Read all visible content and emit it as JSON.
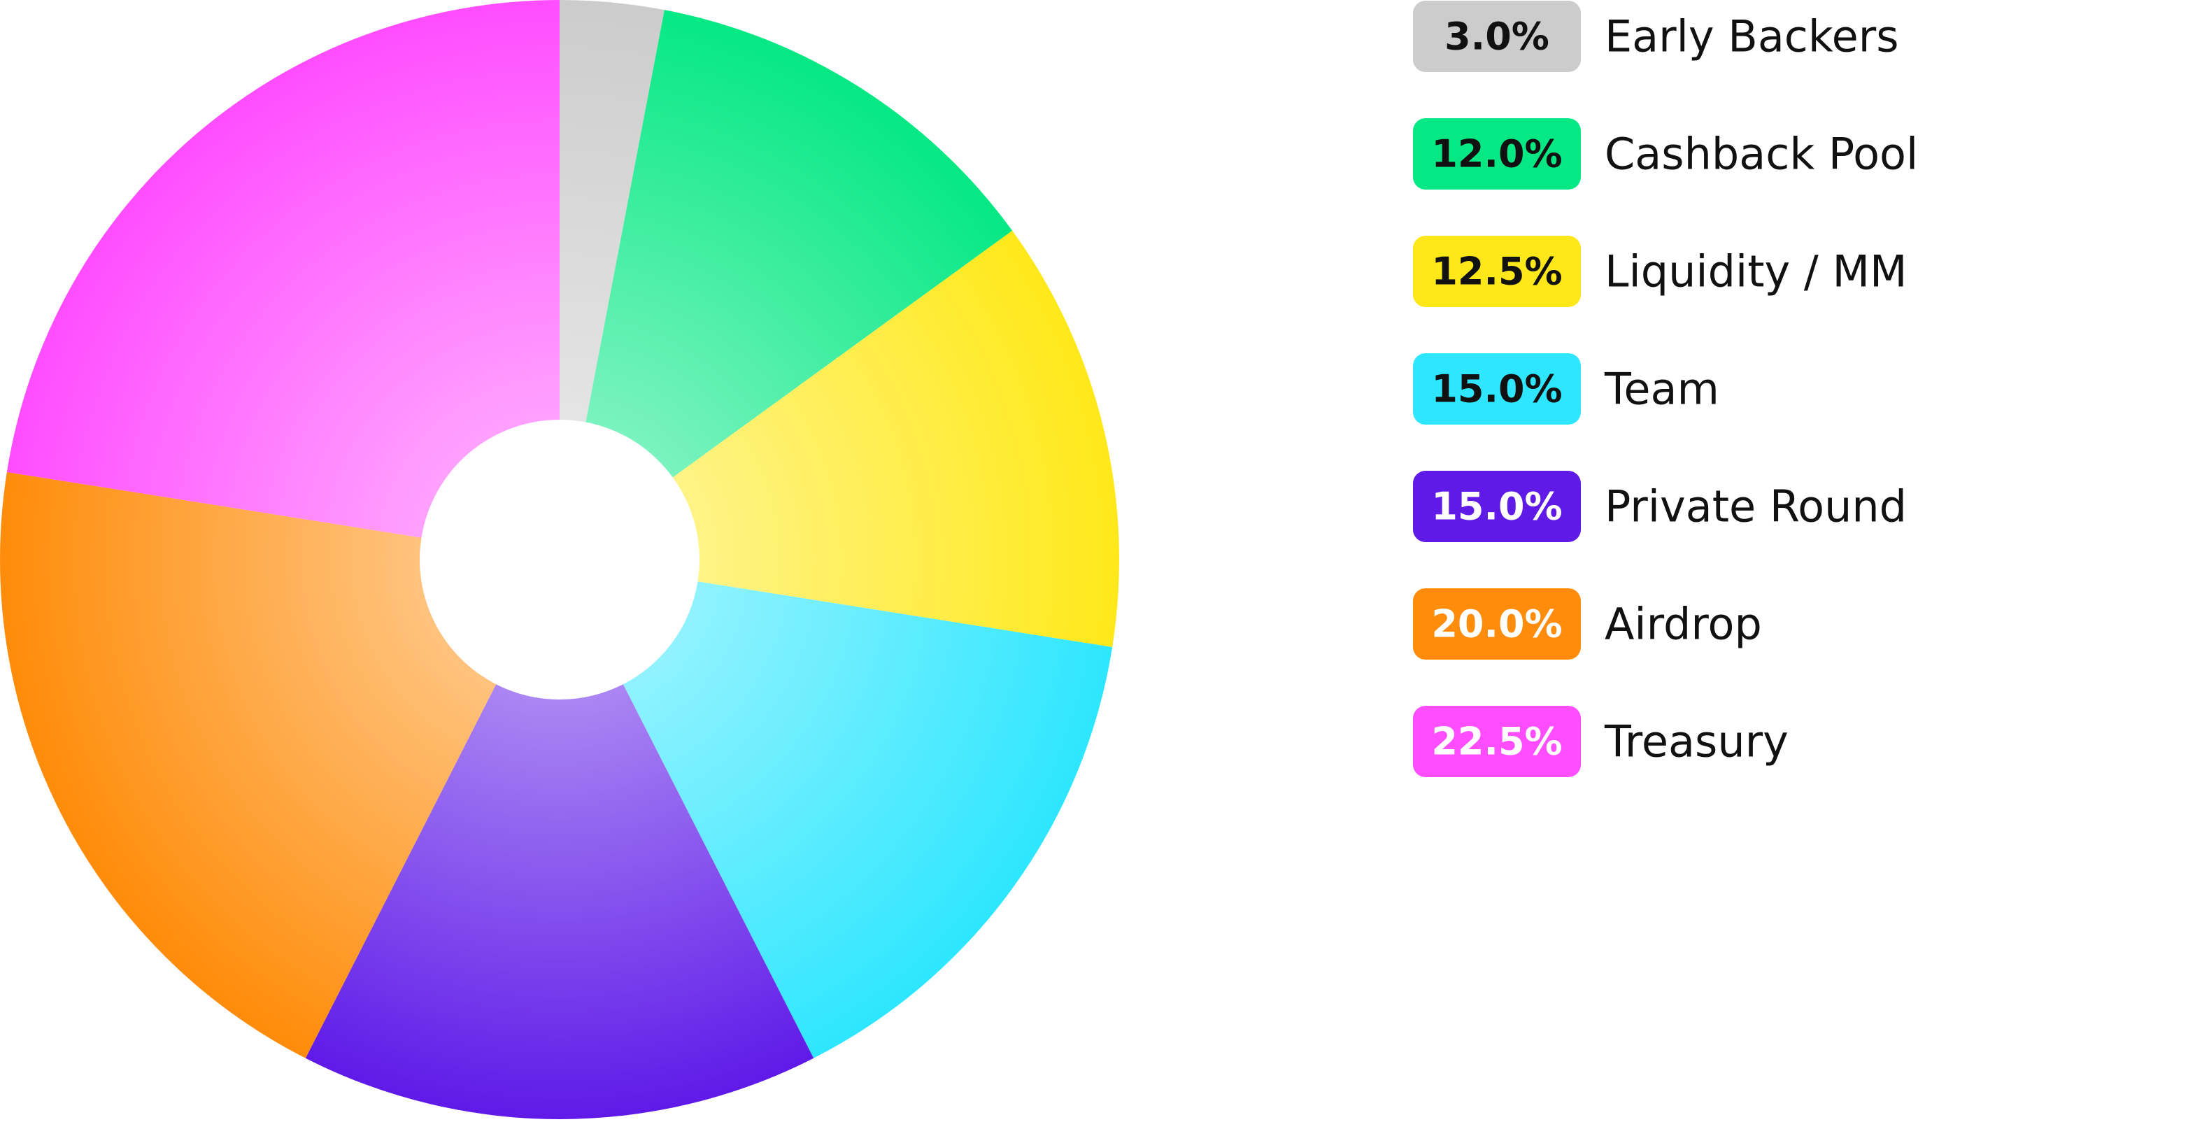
{
  "chart_data": {
    "type": "pie",
    "categories": [
      "Early Backers",
      "Cashback Pool",
      "Liquidity / MM",
      "Team",
      "Private Round",
      "Airdrop",
      "Treasury"
    ],
    "values": [
      3.0,
      12.0,
      12.5,
      15.0,
      15.0,
      20.0,
      22.5
    ],
    "value_labels": [
      "3.0%",
      "12.0%",
      "12.5%",
      "15.0%",
      "15.0%",
      "20.0%",
      "22.5%"
    ],
    "colors": [
      "#cccccc",
      "#05e884",
      "#ffe81a",
      "#2ee6ff",
      "#5f1ae8",
      "#ff8c0a",
      "#ff4dff"
    ],
    "label_colors": [
      "#111111",
      "#111111",
      "#111111",
      "#111111",
      "#ffffff",
      "#ffffff",
      "#ffffff"
    ],
    "legend": "right"
  }
}
